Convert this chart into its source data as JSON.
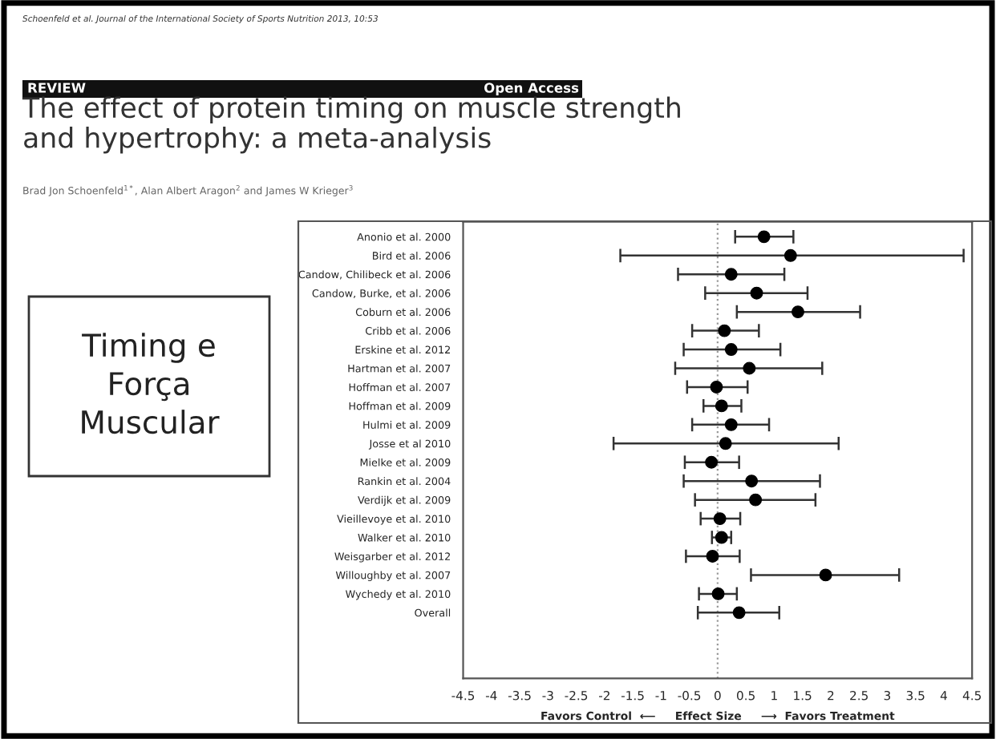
{
  "chart_data": {
    "type": "scatter",
    "orientation": "horizontal",
    "title": "The effect of protein timing on muscle strength\nand hypertrophy: a meta-analysis",
    "subtitle": "Brad Jon Schoenfeld$^{1*}$, Alan Albert Aragon$^{2}$ and James W Krieger$^{3}$",
    "xlabel": "Favors Control  ⟵     Effect Size     ⟶  Favors Treatment",
    "annotations": [
      "Schoenfeld et al. Journal of the International Society of Sports Nutrition 2013, 10:53",
      "REVIEW",
      "Open Access",
      "Timing e\nForça\nMuscular"
    ],
    "categories": [
      "Anonio et al. 2000",
      "Bird et al. 2006",
      "Candow, Chilibeck et al. 2006",
      "Candow, Burke, et al. 2006",
      "Coburn et al. 2006",
      "Cribb et al. 2006",
      "Erskine et al. 2012",
      "Hartman et al. 2007",
      "Hoffman et al. 2007",
      "Hoffman et al. 2009",
      "Hulmi et al. 2009",
      "Josse et al 2010",
      "Mielke et al. 2009",
      "Rankin et al. 2004",
      "Verdijk et al. 2009",
      "Vieillevoye et al. 2010",
      "Walker et al. 2010",
      "Weisgarber et al. 2012",
      "Willoughby et al. 2007",
      "Wychedy et al. 2010",
      "Overall"
    ],
    "values": [
      0.82,
      1.29,
      0.24,
      0.69,
      1.42,
      0.12,
      0.24,
      0.56,
      -0.02,
      0.07,
      0.24,
      0.14,
      -0.11,
      0.6,
      0.67,
      0.04,
      0.07,
      -0.09,
      1.91,
      0.01,
      0.38
    ],
    "errors": [
      [
        0.31,
        1.34
      ],
      [
        -1.72,
        4.35
      ],
      [
        -0.7,
        1.18
      ],
      [
        -0.22,
        1.59
      ],
      [
        0.34,
        2.52
      ],
      [
        -0.45,
        0.73
      ],
      [
        -0.6,
        1.11
      ],
      [
        -0.75,
        1.85
      ],
      [
        -0.54,
        0.53
      ],
      [
        -0.25,
        0.42
      ],
      [
        -0.45,
        0.91
      ],
      [
        -1.84,
        2.14
      ],
      [
        -0.58,
        0.38
      ],
      [
        -0.6,
        1.81
      ],
      [
        -0.4,
        1.73
      ],
      [
        -0.3,
        0.4
      ],
      [
        -0.1,
        0.24
      ],
      [
        -0.56,
        0.39
      ],
      [
        0.59,
        3.21
      ],
      [
        -0.33,
        0.34
      ],
      [
        -0.35,
        1.09
      ]
    ],
    "color": "#000000",
    "marker": "circle",
    "xlim": [
      -4.5,
      4.5
    ],
    "xticks": [
      -4.5,
      -4,
      -3.5,
      -3,
      -2.5,
      -2,
      -1.5,
      -1,
      -0.5,
      0,
      0.5,
      1,
      1.5,
      2,
      2.5,
      3,
      3.5,
      4,
      4.5
    ],
    "ref_lines": [
      {
        "axis": "x",
        "value": 0,
        "line_style": "dotted",
        "color": "#999999"
      }
    ],
    "grid": false
  }
}
